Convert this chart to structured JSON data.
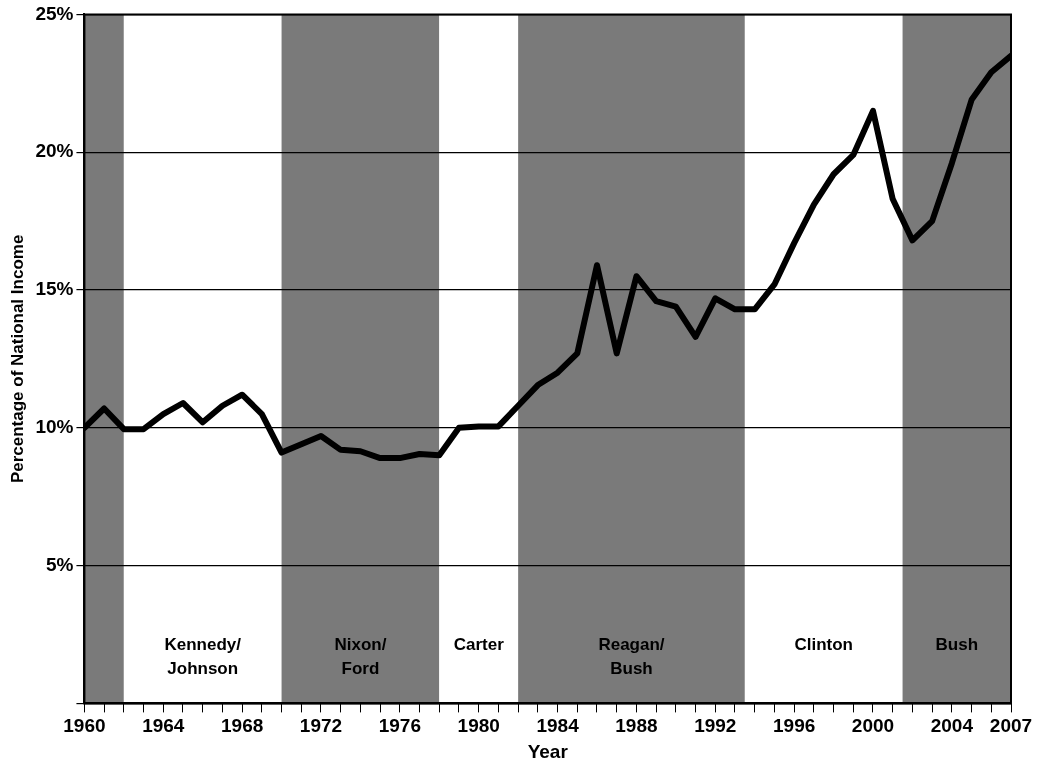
{
  "chart_data": {
    "type": "line",
    "xlabel": "Year",
    "ylabel": "Percentage of National Income",
    "x": [
      1960,
      1961,
      1962,
      1963,
      1964,
      1965,
      1966,
      1967,
      1968,
      1969,
      1970,
      1971,
      1972,
      1973,
      1974,
      1975,
      1976,
      1977,
      1978,
      1979,
      1980,
      1981,
      1982,
      1983,
      1984,
      1985,
      1986,
      1987,
      1988,
      1989,
      1990,
      1991,
      1992,
      1993,
      1994,
      1995,
      1996,
      1997,
      1998,
      1999,
      2000,
      2001,
      2002,
      2003,
      2004,
      2005,
      2006,
      2007
    ],
    "series": [
      {
        "color": "#000000",
        "values": [
          10.0,
          10.7,
          9.95,
          9.95,
          10.5,
          10.9,
          10.2,
          10.8,
          11.2,
          10.5,
          9.1,
          9.4,
          9.7,
          9.2,
          9.15,
          8.9,
          8.9,
          9.05,
          9.0,
          10.0,
          10.05,
          10.05,
          10.8,
          11.55,
          12.0,
          12.7,
          15.9,
          12.7,
          15.5,
          14.6,
          14.4,
          13.3,
          14.7,
          14.3,
          14.3,
          15.2,
          16.7,
          18.1,
          19.2,
          19.9,
          21.5,
          18.3,
          16.8,
          17.5,
          19.6,
          21.9,
          22.9,
          23.5
        ]
      }
    ],
    "xlim": [
      1960,
      2007
    ],
    "xticks": [
      1960,
      {
        "value": 1961,
        "label": null
      },
      {
        "value": 1962,
        "label": null
      },
      {
        "value": 1963,
        "label": null
      },
      1964,
      {
        "value": 1965,
        "label": null
      },
      {
        "value": 1966,
        "label": null
      },
      {
        "value": 1967,
        "label": null
      },
      1968,
      {
        "value": 1969,
        "label": null
      },
      {
        "value": 1970,
        "label": null
      },
      {
        "value": 1971,
        "label": null
      },
      1972,
      {
        "value": 1973,
        "label": null
      },
      {
        "value": 1974,
        "label": null
      },
      {
        "value": 1975,
        "label": null
      },
      1976,
      {
        "value": 1977,
        "label": null
      },
      {
        "value": 1978,
        "label": null
      },
      {
        "value": 1979,
        "label": null
      },
      1980,
      {
        "value": 1981,
        "label": null
      },
      {
        "value": 1982,
        "label": null
      },
      {
        "value": 1983,
        "label": null
      },
      1984,
      {
        "value": 1985,
        "label": null
      },
      {
        "value": 1986,
        "label": null
      },
      {
        "value": 1987,
        "label": null
      },
      1988,
      {
        "value": 1989,
        "label": null
      },
      {
        "value": 1990,
        "label": null
      },
      {
        "value": 1991,
        "label": null
      },
      1992,
      {
        "value": 1993,
        "label": null
      },
      {
        "value": 1994,
        "label": null
      },
      {
        "value": 1995,
        "label": null
      },
      1996,
      {
        "value": 1997,
        "label": null
      },
      {
        "value": 1998,
        "label": null
      },
      {
        "value": 1999,
        "label": null
      },
      2000,
      {
        "value": 2001,
        "label": null
      },
      {
        "value": 2002,
        "label": null
      },
      {
        "value": 2003,
        "label": null
      },
      2004,
      {
        "value": 2005,
        "label": null
      },
      {
        "value": 2006,
        "label": null
      },
      2007
    ],
    "ylim": [
      0,
      25
    ],
    "yticks": [
      {
        "value": 0,
        "label": null
      },
      {
        "value": 5,
        "label": "5%"
      },
      {
        "value": 10,
        "label": "10%"
      },
      {
        "value": 15,
        "label": "15%"
      },
      {
        "value": 20,
        "label": "20%"
      },
      {
        "value": 25,
        "label": "25%"
      }
    ],
    "grid": "y",
    "legend": false,
    "marker": "none",
    "line_style": "solid",
    "bands": [
      {
        "axis": "x",
        "from": 1960,
        "to": 1962,
        "label": null,
        "color": "#7a7a7a"
      },
      {
        "axis": "x",
        "from": 1962,
        "to": 1970,
        "label": "Kennedy/\nJohnson",
        "color": "#ffffff"
      },
      {
        "axis": "x",
        "from": 1970,
        "to": 1978,
        "label": "Nixon/\nFord",
        "color": "#7a7a7a"
      },
      {
        "axis": "x",
        "from": 1978,
        "to": 1982,
        "label": "Carter",
        "color": "#ffffff"
      },
      {
        "axis": "x",
        "from": 1982,
        "to": 1993.5,
        "label": "Reagan/\nBush",
        "color": "#7a7a7a"
      },
      {
        "axis": "x",
        "from": 1993.5,
        "to": 2001.5,
        "label": "Clinton",
        "color": "#ffffff"
      },
      {
        "axis": "x",
        "from": 2001.5,
        "to": 2007,
        "label": "Bush",
        "color": "#7a7a7a"
      }
    ]
  }
}
